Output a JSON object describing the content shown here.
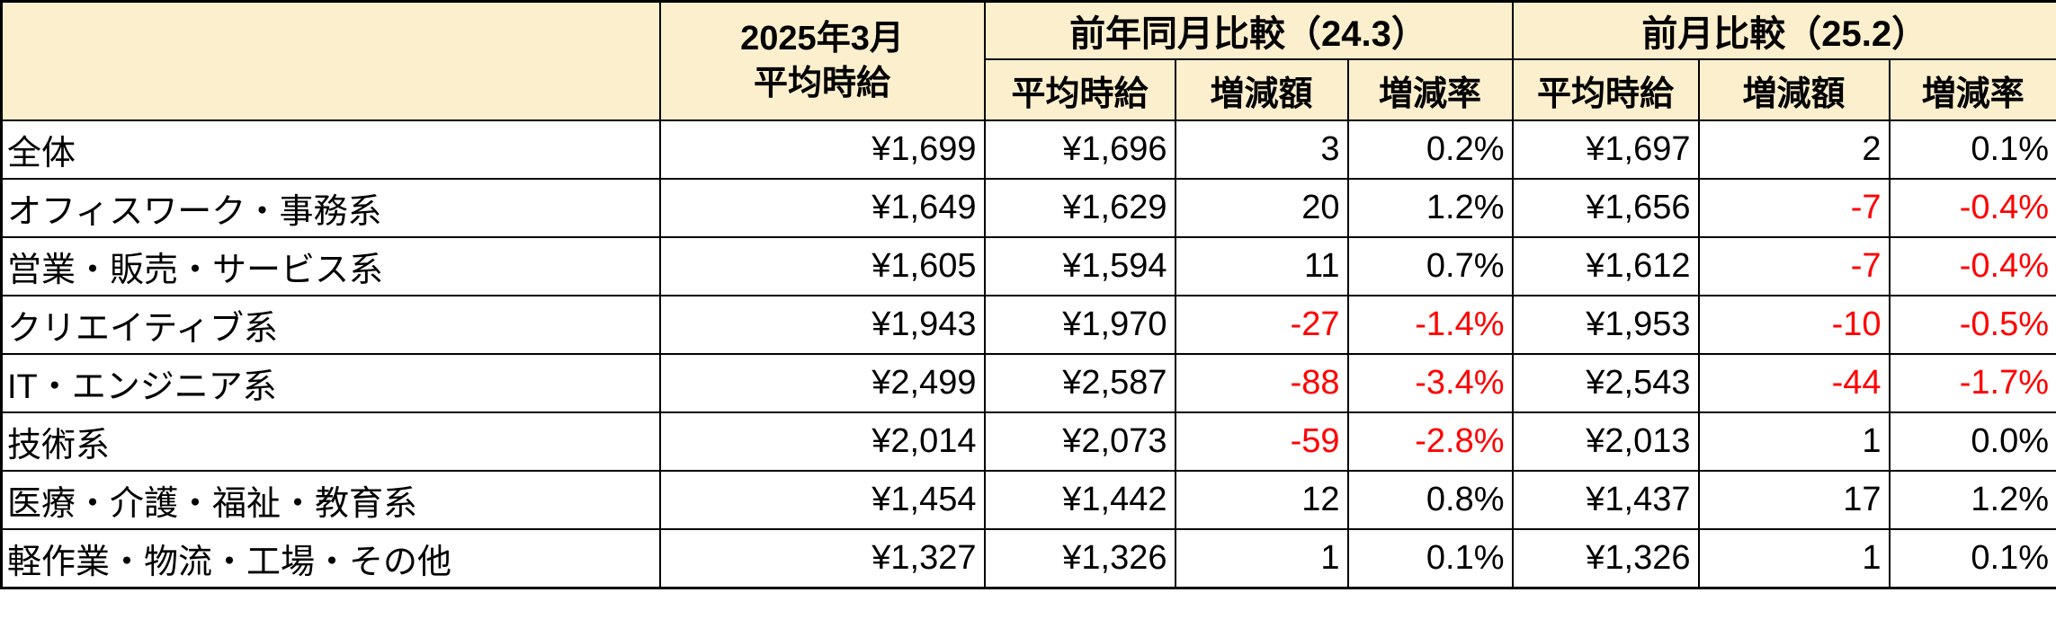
{
  "colors": {
    "header_bg": "#FCEFCE",
    "negative": "#FF0000",
    "border": "#000000"
  },
  "header": {
    "corner": "",
    "current_line1": "2025年3月",
    "current_line2": "平均時給",
    "groups": [
      {
        "label": "前年同月比較（24.3）",
        "subs": [
          "平均時給",
          "増減額",
          "増減率"
        ]
      },
      {
        "label": "前月比較（25.2）",
        "subs": [
          "平均時給",
          "増減額",
          "増減率"
        ]
      }
    ]
  },
  "chart_data": {
    "type": "table",
    "title": "2025年3月 平均時給 比較表",
    "columns": [
      "",
      "2025年3月 平均時給",
      "前年同月比較（24.3） 平均時給",
      "前年同月比較（24.3） 増減額",
      "前年同月比較（24.3） 増減率",
      "前月比較（25.2） 平均時給",
      "前月比較（25.2） 増減額",
      "前月比較（25.2） 増減率"
    ],
    "rows": [
      {
        "category": "全体",
        "current": "¥1,699",
        "yoy_avg": "¥1,696",
        "yoy_diff": "3",
        "yoy_rate": "0.2%",
        "mom_avg": "¥1,697",
        "mom_diff": "2",
        "mom_rate": "0.1%"
      },
      {
        "category": "オフィスワーク・事務系",
        "current": "¥1,649",
        "yoy_avg": "¥1,629",
        "yoy_diff": "20",
        "yoy_rate": "1.2%",
        "mom_avg": "¥1,656",
        "mom_diff": "-7",
        "mom_rate": "-0.4%"
      },
      {
        "category": "営業・販売・サービス系",
        "current": "¥1,605",
        "yoy_avg": "¥1,594",
        "yoy_diff": "11",
        "yoy_rate": "0.7%",
        "mom_avg": "¥1,612",
        "mom_diff": "-7",
        "mom_rate": "-0.4%"
      },
      {
        "category": "クリエイティブ系",
        "current": "¥1,943",
        "yoy_avg": "¥1,970",
        "yoy_diff": "-27",
        "yoy_rate": "-1.4%",
        "mom_avg": "¥1,953",
        "mom_diff": "-10",
        "mom_rate": "-0.5%"
      },
      {
        "category": "IT・エンジニア系",
        "current": "¥2,499",
        "yoy_avg": "¥2,587",
        "yoy_diff": "-88",
        "yoy_rate": "-3.4%",
        "mom_avg": "¥2,543",
        "mom_diff": "-44",
        "mom_rate": "-1.7%"
      },
      {
        "category": "技術系",
        "current": "¥2,014",
        "yoy_avg": "¥2,073",
        "yoy_diff": "-59",
        "yoy_rate": "-2.8%",
        "mom_avg": "¥2,013",
        "mom_diff": "1",
        "mom_rate": "0.0%"
      },
      {
        "category": "医療・介護・福祉・教育系",
        "current": "¥1,454",
        "yoy_avg": "¥1,442",
        "yoy_diff": "12",
        "yoy_rate": "0.8%",
        "mom_avg": "¥1,437",
        "mom_diff": "17",
        "mom_rate": "1.2%"
      },
      {
        "category": "軽作業・物流・工場・その他",
        "current": "¥1,327",
        "yoy_avg": "¥1,326",
        "yoy_diff": "1",
        "yoy_rate": "0.1%",
        "mom_avg": "¥1,326",
        "mom_diff": "1",
        "mom_rate": "0.1%"
      }
    ]
  }
}
